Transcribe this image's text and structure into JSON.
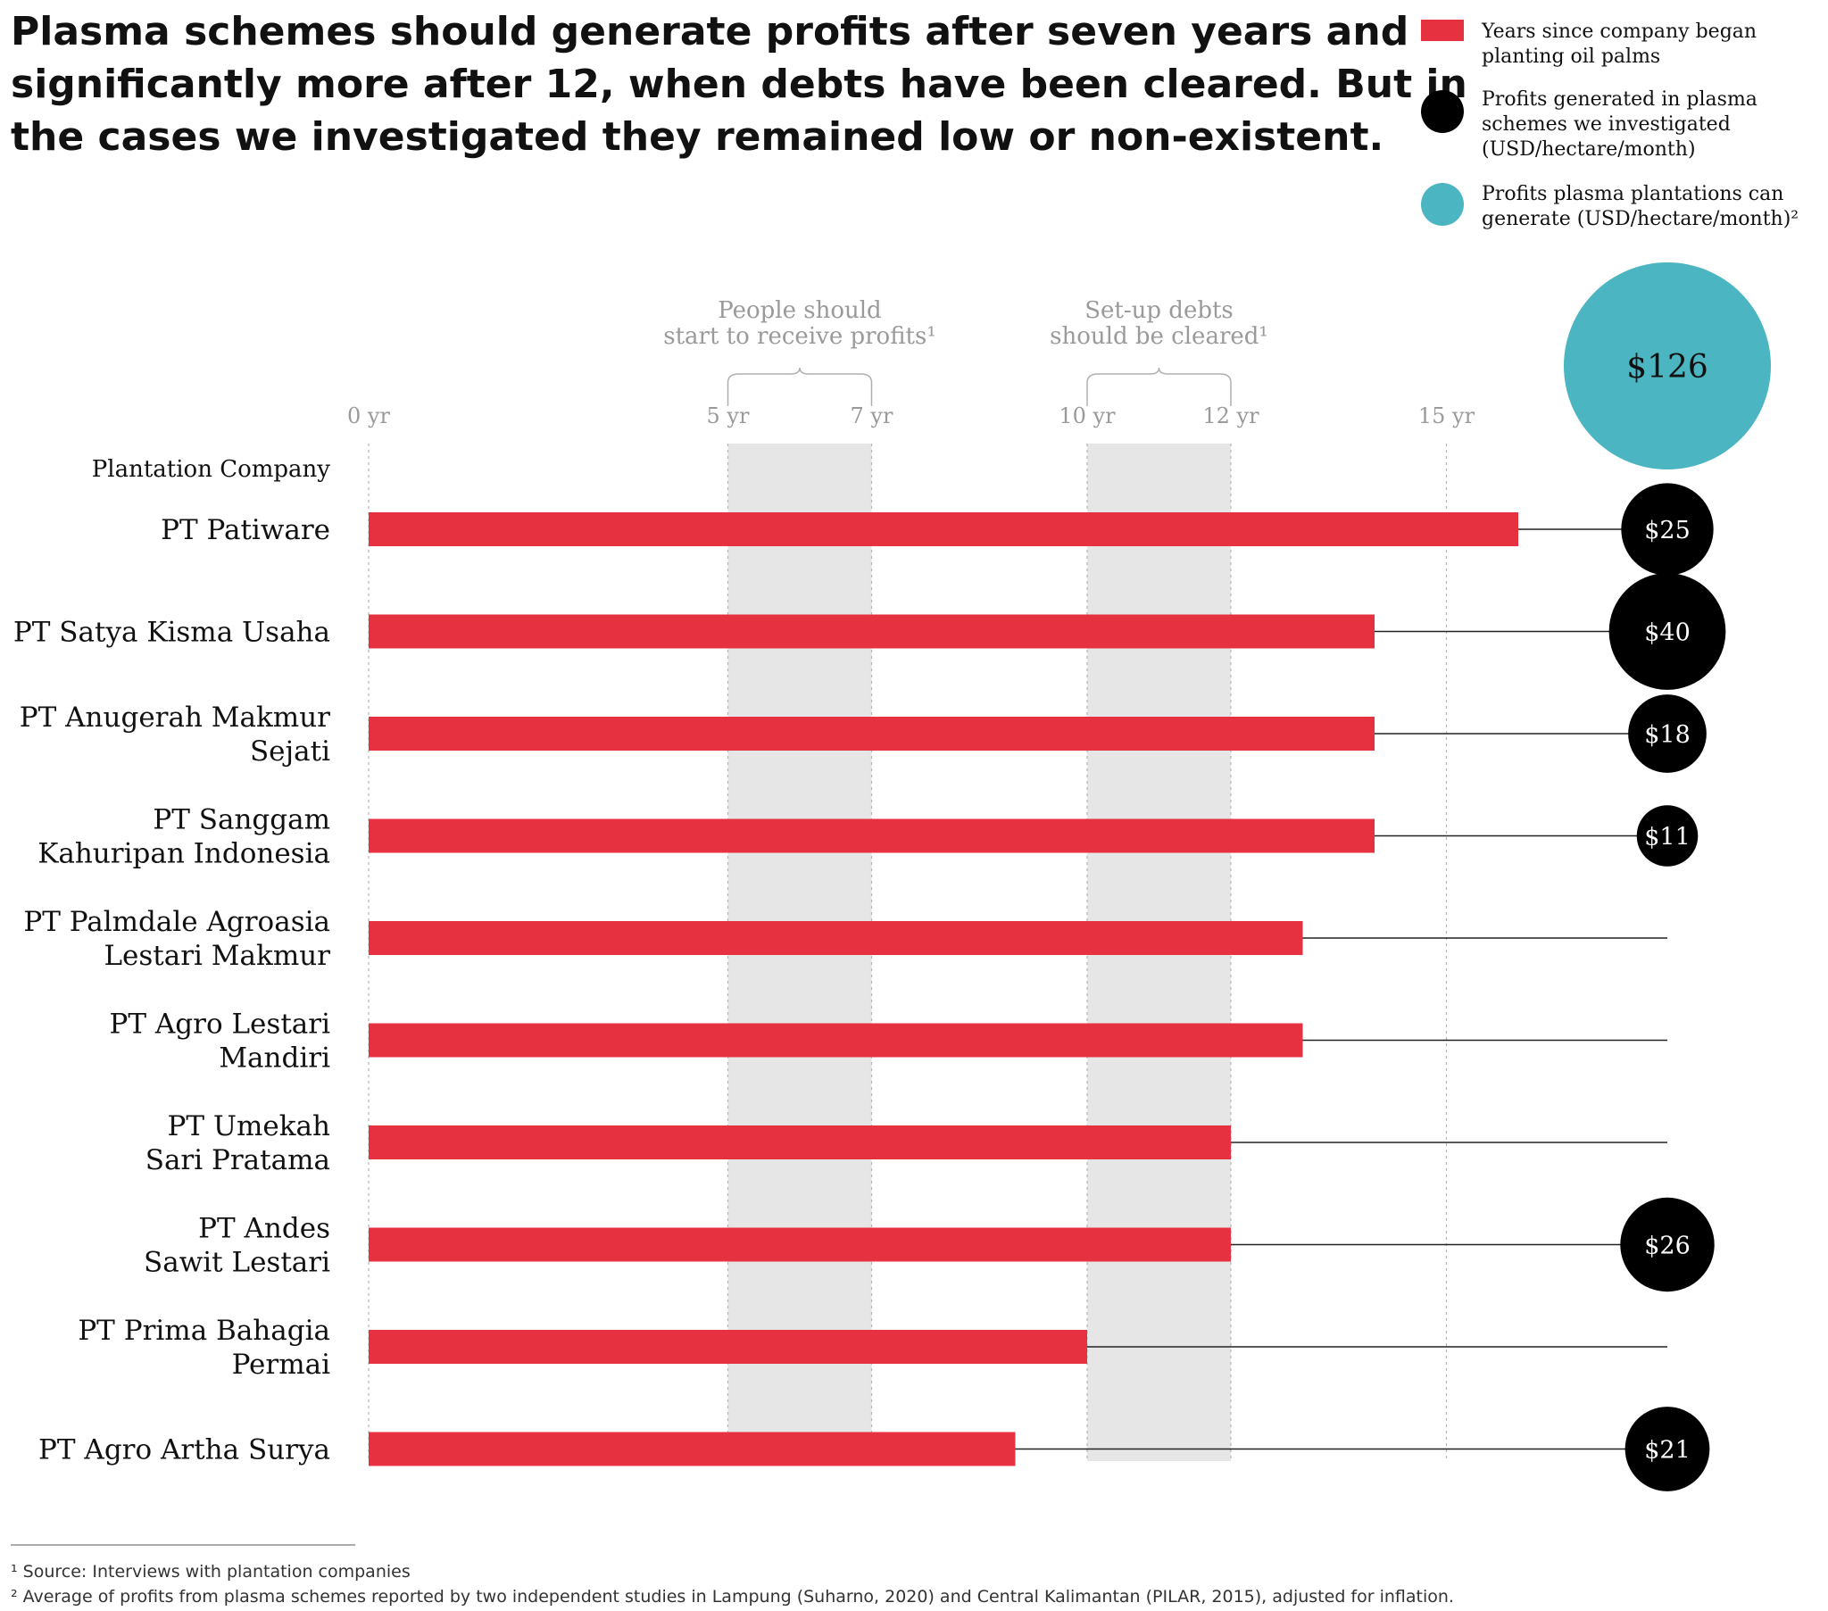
{
  "title_lines": [
    "Plasma schemes should generate profits after seven years and",
    "significantly more after 12, when debts have been cleared. But in",
    "the cases we investigated they remained low or non-existent."
  ],
  "legend": {
    "years": [
      "Years since company began",
      "planting oil palms"
    ],
    "investigated": [
      "Profits generated in plasma",
      "schemes we investigated",
      "(USD/hectare/month)"
    ],
    "potential": [
      "Profits plasma plantations can",
      "generate (USD/hectare/month)²"
    ]
  },
  "colors": {
    "bar": "#e63240",
    "investigated": "#000000",
    "potential": "#4bb5c1",
    "band": "#e6e6e6"
  },
  "chart_data": {
    "type": "bar",
    "orientation": "horizontal",
    "xlabel": "Years since company began planting oil palms",
    "category_header": "Plantation Company",
    "xlim": [
      0,
      16
    ],
    "ticks": [
      {
        "value": 0,
        "label": "0 yr"
      },
      {
        "value": 5,
        "label": "5 yr"
      },
      {
        "value": 7,
        "label": "7 yr"
      },
      {
        "value": 10,
        "label": "10 yr"
      },
      {
        "value": 12,
        "label": "12 yr"
      },
      {
        "value": 15,
        "label": "15 yr"
      }
    ],
    "bands": [
      {
        "from": 5,
        "to": 7,
        "label_lines": [
          "People should",
          "start to receive profits¹"
        ]
      },
      {
        "from": 10,
        "to": 12,
        "label_lines": [
          "Set-up debts",
          "should be cleared¹"
        ]
      }
    ],
    "potential_profit": {
      "value": 126,
      "label": "$126"
    },
    "rows": [
      {
        "company_lines": [
          "PT Patiware"
        ],
        "years": 16,
        "profit": 25,
        "profit_label": "$25"
      },
      {
        "company_lines": [
          "PT Satya Kisma Usaha"
        ],
        "years": 14,
        "profit": 40,
        "profit_label": "$40"
      },
      {
        "company_lines": [
          "PT Anugerah Makmur",
          "Sejati"
        ],
        "years": 14,
        "profit": 18,
        "profit_label": "$18"
      },
      {
        "company_lines": [
          "PT Sanggam",
          "Kahuripan Indonesia"
        ],
        "years": 14,
        "profit": 11,
        "profit_label": "$11"
      },
      {
        "company_lines": [
          "PT Palmdale Agroasia",
          "Lestari Makmur"
        ],
        "years": 13,
        "profit": null,
        "profit_label": null
      },
      {
        "company_lines": [
          "PT Agro Lestari",
          "Mandiri"
        ],
        "years": 13,
        "profit": null,
        "profit_label": null
      },
      {
        "company_lines": [
          "PT Umekah",
          "Sari Pratama"
        ],
        "years": 12,
        "profit": null,
        "profit_label": null
      },
      {
        "company_lines": [
          "PT Andes",
          "Sawit Lestari"
        ],
        "years": 12,
        "profit": 26,
        "profit_label": "$26"
      },
      {
        "company_lines": [
          "PT Prima Bahagia",
          "Permai"
        ],
        "years": 10,
        "profit": null,
        "profit_label": null
      },
      {
        "company_lines": [
          "PT Agro Artha Surya"
        ],
        "years": 9,
        "profit": 21,
        "profit_label": "$21"
      }
    ]
  },
  "footnotes": [
    "¹ Source: Interviews with plantation companies",
    "² Average of profits from plasma schemes reported by two independent studies in Lampung (Suharno, 2020) and Central Kalimantan (PILAR, 2015), adjusted for inflation."
  ]
}
